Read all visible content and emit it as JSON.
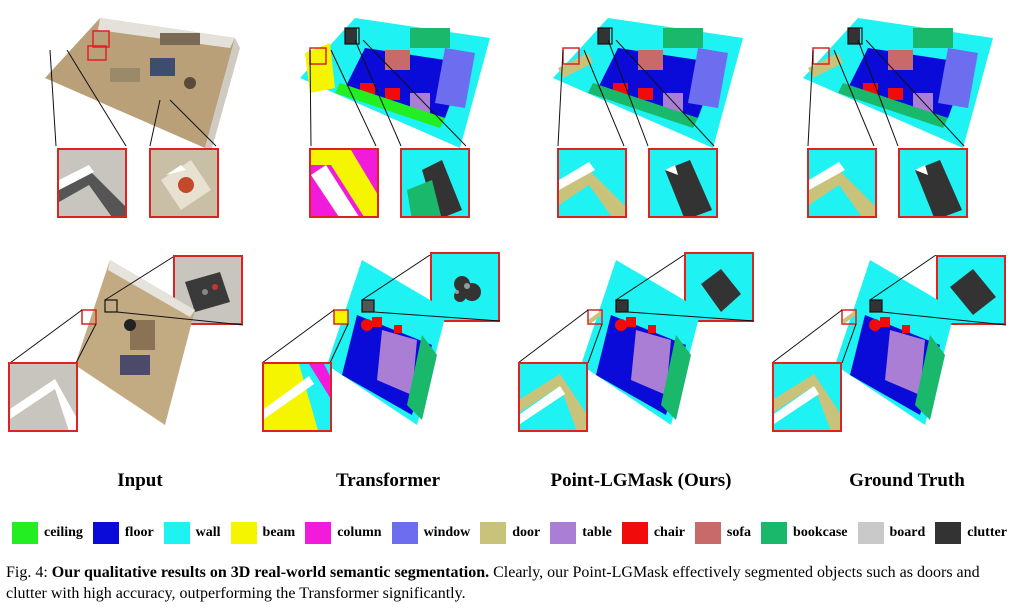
{
  "columns": [
    "Input",
    "Transformer",
    "Point-LGMask (Ours)",
    "Ground Truth"
  ],
  "legend": [
    {
      "label": "ceiling",
      "color": "#22ee22"
    },
    {
      "label": "floor",
      "color": "#0b0bd9"
    },
    {
      "label": "wall",
      "color": "#1ff2f2"
    },
    {
      "label": "beam",
      "color": "#f5f500"
    },
    {
      "label": "column",
      "color": "#f21bdc"
    },
    {
      "label": "window",
      "color": "#6d6df0"
    },
    {
      "label": "door",
      "color": "#c9c27a"
    },
    {
      "label": "table",
      "color": "#a97ed4"
    },
    {
      "label": "chair",
      "color": "#f20b0b"
    },
    {
      "label": "sofa",
      "color": "#c86a6a"
    },
    {
      "label": "bookcase",
      "color": "#1ab86a"
    },
    {
      "label": "board",
      "color": "#c9c9c9"
    },
    {
      "label": "clutter",
      "color": "#333333"
    }
  ],
  "caption": {
    "prefix": "Fig. 4: ",
    "bold": "Our qualitative results on 3D real-world semantic segmentation.",
    "rest": " Clearly, our Point-LGMask effectively segmented objects such as doors and clutter with high accuracy, outperforming the Transformer significantly."
  }
}
